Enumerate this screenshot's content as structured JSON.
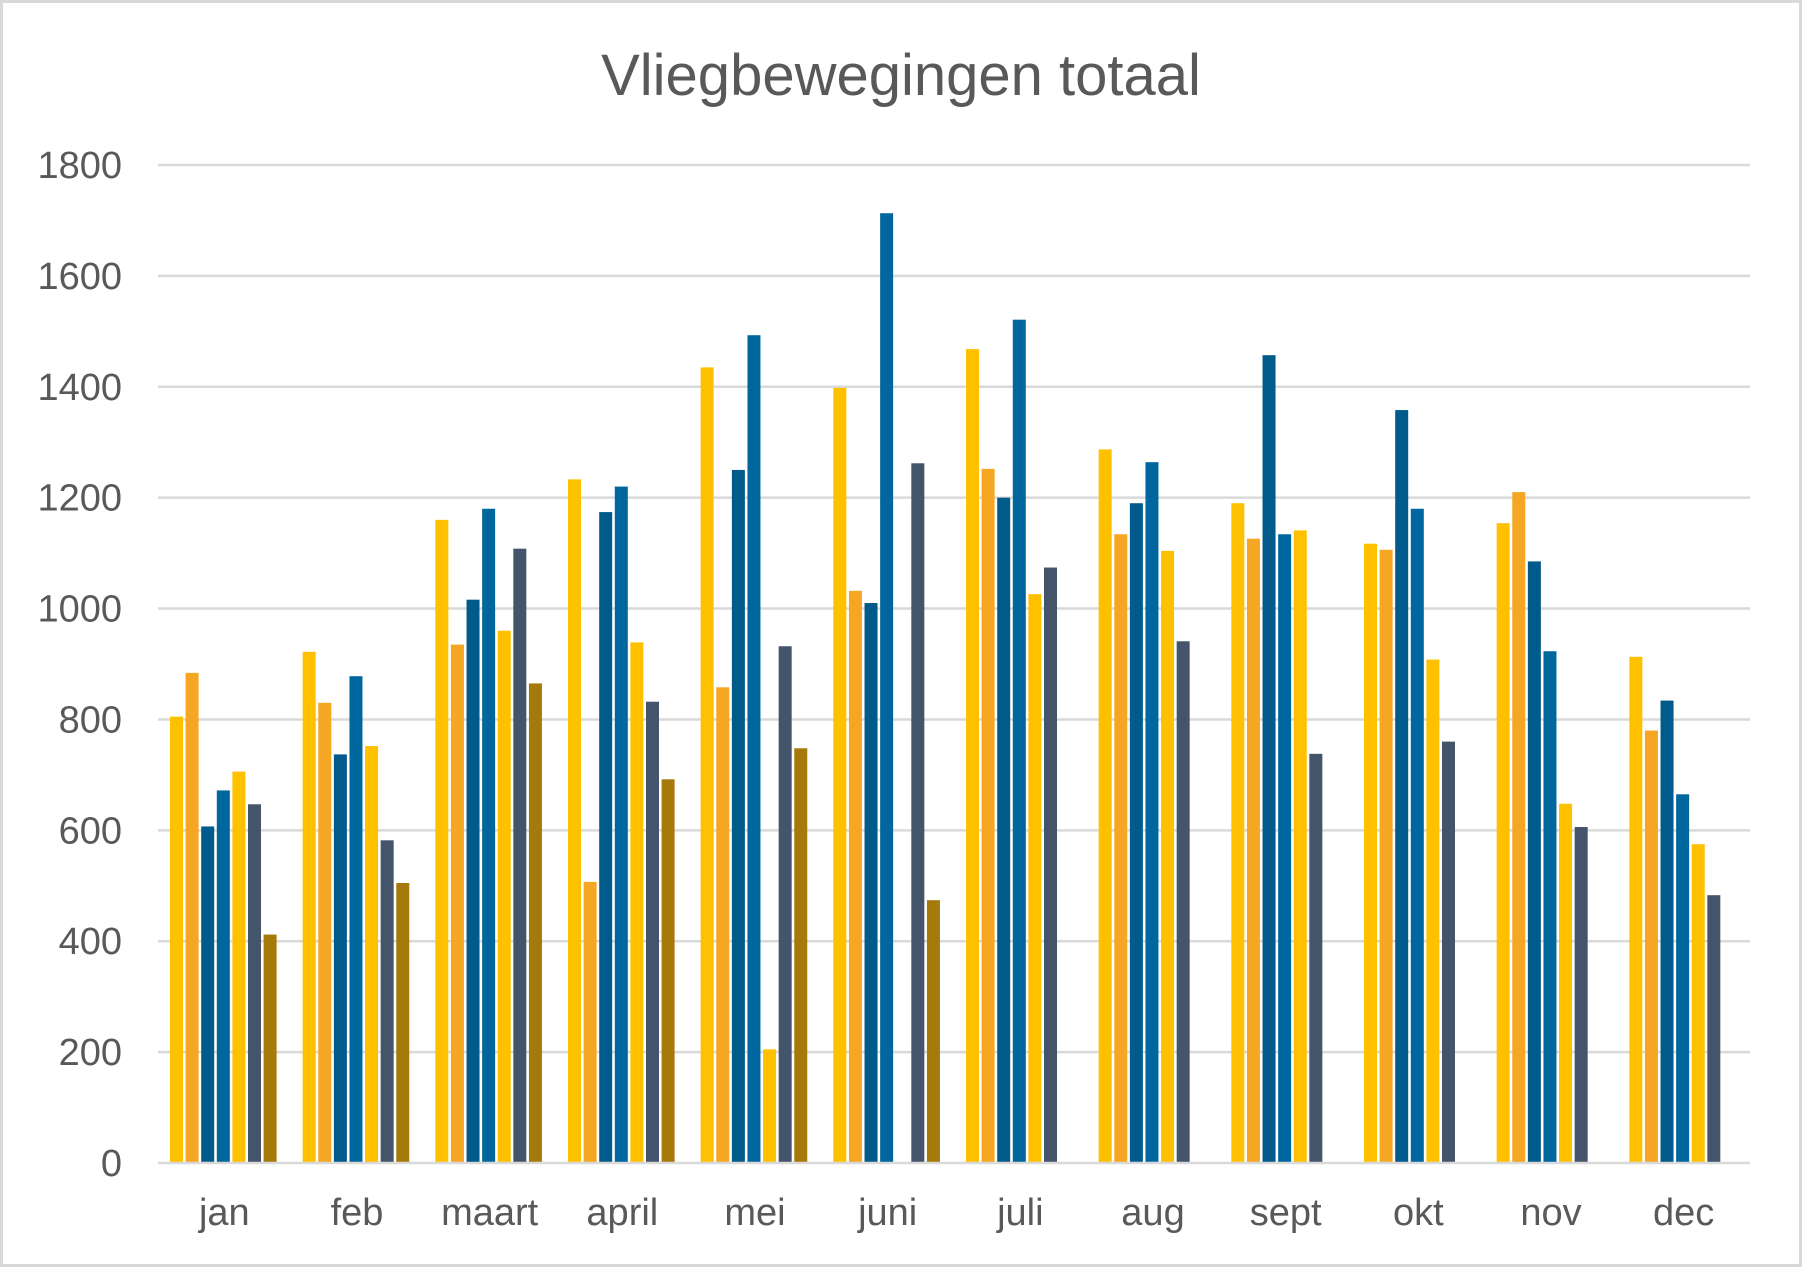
{
  "chart_data": {
    "type": "bar",
    "title": "Vliegbewegingen totaal",
    "categories": [
      "jan",
      "feb",
      "maart",
      "april",
      "mei",
      "juni",
      "juli",
      "aug",
      "sept",
      "okt",
      "nov",
      "dec"
    ],
    "ylim": [
      0,
      1800
    ],
    "yticks": [
      0,
      200,
      400,
      600,
      800,
      1000,
      1200,
      1400,
      1600,
      1800
    ],
    "grid": true,
    "legend": "none",
    "series": [
      {
        "color": "#FFC000",
        "values": [
          805,
          922,
          1160,
          1233,
          1435,
          1398,
          1468,
          1287,
          1190,
          1117,
          1154,
          913
        ]
      },
      {
        "color": "#F5A623",
        "values": [
          884,
          830,
          935,
          507,
          858,
          1032,
          1252,
          1134,
          1126,
          1106,
          1210,
          780
        ]
      },
      {
        "color": "#005A8B",
        "values": [
          607,
          737,
          1016,
          1174,
          1250,
          1010,
          1200,
          1190,
          1457,
          1358,
          1085,
          834
        ]
      },
      {
        "color": "#00679E",
        "values": [
          672,
          878,
          1180,
          1220,
          1493,
          1713,
          1521,
          1264,
          1134,
          1180,
          923,
          665
        ]
      },
      {
        "color": "#FFC000",
        "values": [
          706,
          752,
          960,
          939,
          205,
          null,
          1026,
          1104,
          1141,
          908,
          648,
          575
        ]
      },
      {
        "color": "#44546A",
        "values": [
          647,
          582,
          1108,
          832,
          932,
          1262,
          1074,
          941,
          738,
          760,
          606,
          483
        ]
      },
      {
        "color": "#A5790A",
        "values": [
          412,
          505,
          865,
          692,
          748,
          474,
          null,
          null,
          null,
          null,
          null,
          null
        ]
      }
    ]
  }
}
